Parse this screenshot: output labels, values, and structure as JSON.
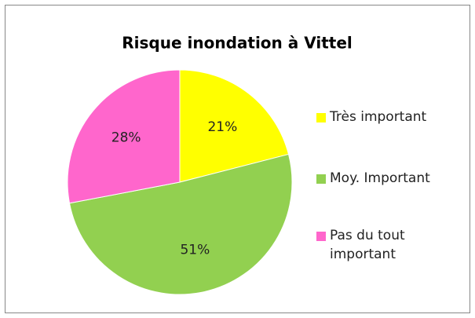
{
  "chart_data": {
    "type": "pie",
    "title": "Risque inondation à Vittel",
    "categories": [
      "Très important",
      "Moy. Important",
      "Pas du tout important"
    ],
    "values": [
      21,
      51,
      28
    ],
    "value_labels": [
      "21%",
      "51%",
      "28%"
    ],
    "colors": [
      "#ffff00",
      "#92d050",
      "#ff66cc"
    ],
    "legend": "right"
  }
}
